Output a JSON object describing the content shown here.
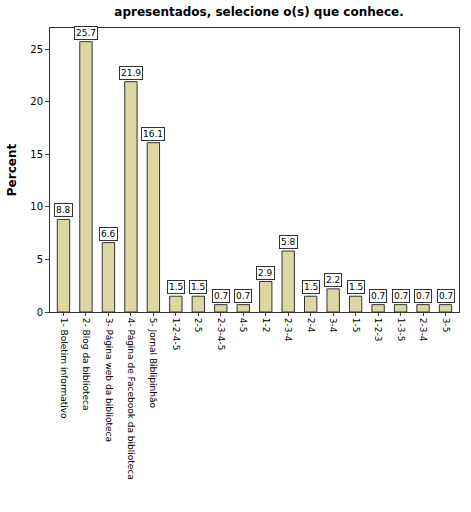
{
  "chart_data": {
    "type": "bar",
    "title": "apresentados, selecione o(s) que conhece.",
    "y_label": "Percent",
    "categories": [
      "1- Boletim informativo",
      "2- Blog da biblioteca",
      "3- Página web da biblioteca",
      "4- Página de Facebook da biblioteca",
      "5- Jornal Biblipinhão",
      "1-2-4-5",
      "2-5",
      "2-3-4-5",
      "4-5",
      "1-2",
      "2-3-4",
      "2-4",
      "3-4",
      "1-5",
      "1-2-3",
      "1-3-5",
      "2-3-4",
      "3-5"
    ],
    "values": [
      8.8,
      25.7,
      6.6,
      21.9,
      16.1,
      1.5,
      1.5,
      0.7,
      0.7,
      2.9,
      5.8,
      1.5,
      2.2,
      1.5,
      0.7,
      0.7,
      0.7,
      0.7
    ],
    "color": "#dcd7a4",
    "ylim": [
      0,
      27
    ],
    "yticks": [
      0,
      5,
      10,
      15,
      20,
      25
    ],
    "grid": false,
    "data_labels": true
  }
}
